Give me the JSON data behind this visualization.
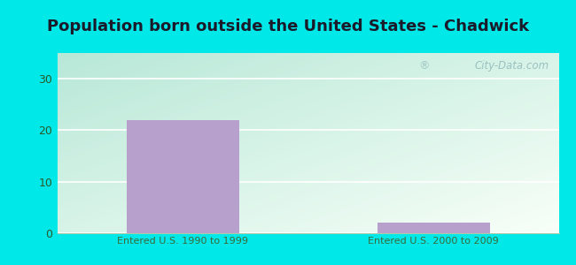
{
  "title": "Population born outside the United States - Chadwick",
  "categories": [
    "Entered U.S. 1990 to 1999",
    "Entered U.S. 2000 to 2009"
  ],
  "values": [
    22,
    2
  ],
  "bar_color": "#b8a0cc",
  "ylim": [
    0,
    35
  ],
  "yticks": [
    0,
    10,
    20,
    30
  ],
  "background_outer": "#00e8e8",
  "grid_color": "#d0e8d0",
  "tick_label_color": "#2a5a2a",
  "x_tick_color": "#3a6a3a",
  "title_color": "#1a1a2a",
  "title_fontsize": 13,
  "watermark": "City-Data.com",
  "watermark_color": "#90b8b8",
  "grad_top_left": "#b8e8d8",
  "grad_bottom_right": "#f0fff0",
  "bar_width": 0.45
}
